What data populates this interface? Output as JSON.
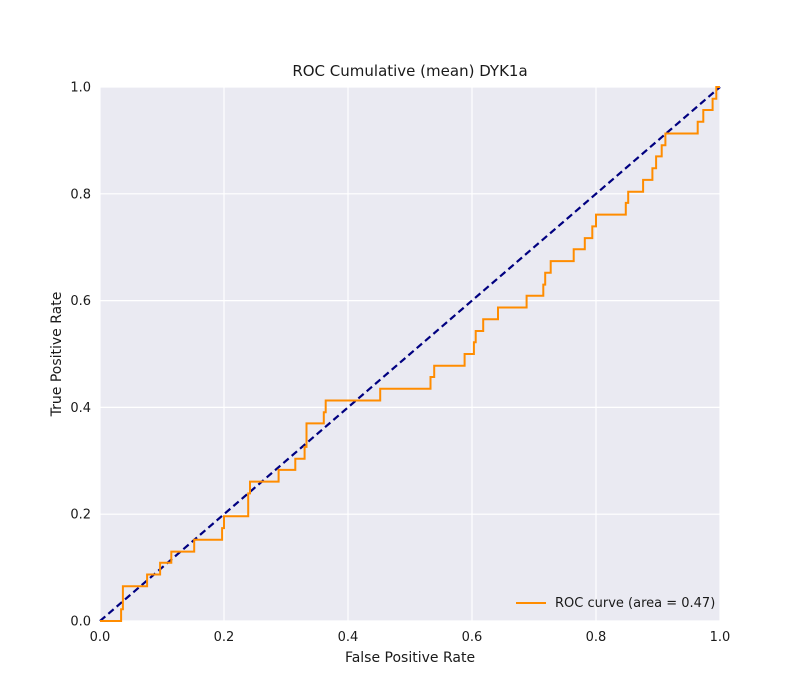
{
  "chart_data": {
    "type": "line",
    "title": "ROC Cumulative (mean) DYK1a",
    "xlabel": "False Positive Rate",
    "ylabel": "True Positive Rate",
    "xlim": [
      0.0,
      1.0
    ],
    "ylim": [
      0.0,
      1.0
    ],
    "xticks": [
      "0.0",
      "0.2",
      "0.4",
      "0.6",
      "0.8",
      "1.0"
    ],
    "yticks": [
      "0.0",
      "0.2",
      "0.4",
      "0.6",
      "0.8",
      "1.0"
    ],
    "grid": true,
    "legend": {
      "position": "lower-right",
      "entries": [
        "ROC curve (area = 0.47)"
      ]
    },
    "colors": {
      "roc": "#ff8c00",
      "diagonal": "#000080",
      "background": "#eaeaf2",
      "grid": "#ffffff"
    },
    "series": [
      {
        "name": "ROC curve (area = 0.47)",
        "style": "solid",
        "x": [
          0.0,
          0.034,
          0.034,
          0.037,
          0.037,
          0.076,
          0.076,
          0.097,
          0.097,
          0.115,
          0.115,
          0.152,
          0.152,
          0.197,
          0.197,
          0.2,
          0.2,
          0.239,
          0.239,
          0.242,
          0.242,
          0.288,
          0.288,
          0.315,
          0.315,
          0.33,
          0.33,
          0.333,
          0.333,
          0.361,
          0.361,
          0.364,
          0.364,
          0.452,
          0.452,
          0.533,
          0.533,
          0.539,
          0.539,
          0.588,
          0.588,
          0.603,
          0.603,
          0.606,
          0.606,
          0.618,
          0.618,
          0.642,
          0.642,
          0.688,
          0.688,
          0.715,
          0.715,
          0.718,
          0.718,
          0.727,
          0.727,
          0.764,
          0.764,
          0.782,
          0.782,
          0.794,
          0.794,
          0.8,
          0.8,
          0.848,
          0.848,
          0.852,
          0.852,
          0.876,
          0.876,
          0.891,
          0.891,
          0.897,
          0.897,
          0.906,
          0.906,
          0.912,
          0.912,
          0.964,
          0.964,
          0.973,
          0.973,
          0.988,
          0.988,
          0.994,
          0.994,
          1.0
        ],
        "y": [
          0.0,
          0.0,
          0.022,
          0.022,
          0.065,
          0.065,
          0.087,
          0.087,
          0.109,
          0.109,
          0.13,
          0.13,
          0.152,
          0.152,
          0.174,
          0.174,
          0.196,
          0.196,
          0.239,
          0.239,
          0.261,
          0.261,
          0.283,
          0.283,
          0.304,
          0.304,
          0.326,
          0.326,
          0.37,
          0.37,
          0.391,
          0.391,
          0.413,
          0.413,
          0.435,
          0.435,
          0.457,
          0.457,
          0.478,
          0.478,
          0.5,
          0.5,
          0.522,
          0.522,
          0.543,
          0.543,
          0.565,
          0.565,
          0.587,
          0.587,
          0.609,
          0.609,
          0.63,
          0.63,
          0.652,
          0.652,
          0.674,
          0.674,
          0.696,
          0.696,
          0.717,
          0.717,
          0.739,
          0.739,
          0.761,
          0.761,
          0.783,
          0.783,
          0.804,
          0.804,
          0.826,
          0.826,
          0.848,
          0.848,
          0.87,
          0.87,
          0.891,
          0.891,
          0.913,
          0.913,
          0.935,
          0.935,
          0.957,
          0.957,
          0.978,
          0.978,
          1.0,
          1.0
        ]
      },
      {
        "style": "dashed",
        "x": [
          0.0,
          1.0
        ],
        "y": [
          0.0,
          1.0
        ]
      }
    ]
  }
}
